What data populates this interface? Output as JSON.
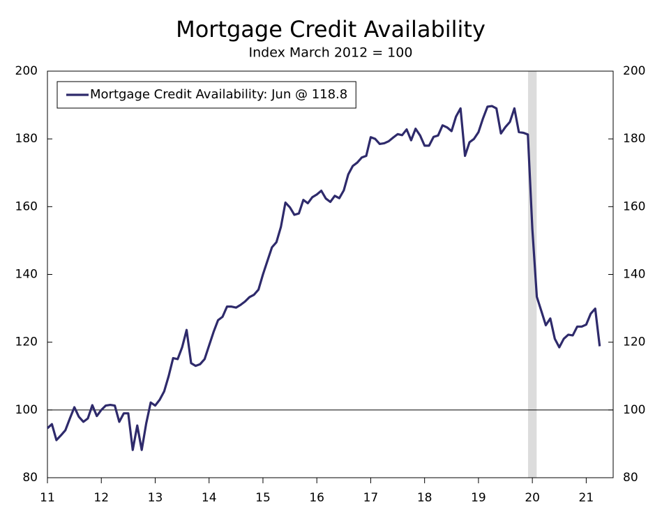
{
  "chart_data": {
    "type": "line",
    "title": "Mortgage Credit Availability",
    "subtitle": "Index March 2012 = 100",
    "x": [
      11.0,
      11.083,
      11.167,
      11.25,
      11.333,
      11.417,
      11.5,
      11.583,
      11.667,
      11.75,
      11.833,
      11.917,
      12.0,
      12.083,
      12.167,
      12.25,
      12.333,
      12.417,
      12.5,
      12.583,
      12.667,
      12.75,
      12.833,
      12.917,
      13.0,
      13.083,
      13.167,
      13.25,
      13.333,
      13.417,
      13.5,
      13.583,
      13.667,
      13.75,
      13.833,
      13.917,
      14.0,
      14.083,
      14.167,
      14.25,
      14.333,
      14.417,
      14.5,
      14.583,
      14.667,
      14.75,
      14.833,
      14.917,
      15.0,
      15.083,
      15.167,
      15.25,
      15.333,
      15.417,
      15.5,
      15.583,
      15.667,
      15.75,
      15.833,
      15.917,
      16.0,
      16.083,
      16.167,
      16.25,
      16.333,
      16.417,
      16.5,
      16.583,
      16.667,
      16.75,
      16.833,
      16.917,
      17.0,
      17.083,
      17.167,
      17.25,
      17.333,
      17.417,
      17.5,
      17.583,
      17.667,
      17.75,
      17.833,
      17.917,
      18.0,
      18.083,
      18.167,
      18.25,
      18.333,
      18.417,
      18.5,
      18.583,
      18.667,
      18.75,
      18.833,
      18.917,
      19.0,
      19.083,
      19.167,
      19.25,
      19.333,
      19.417,
      19.5,
      19.583,
      19.667,
      19.75,
      19.833,
      19.917,
      20.0,
      20.083,
      20.167,
      20.25,
      20.333,
      20.417,
      20.5,
      20.583,
      20.667,
      20.75,
      20.833,
      20.917,
      21.0,
      21.083,
      21.167,
      21.25
    ],
    "series": [
      {
        "name": "Mortgage Credit Availability: Jun @ 118.8",
        "color": "#2e2a6b",
        "values": [
          94.6,
          95.8,
          91.1,
          92.5,
          94,
          97.5,
          100.8,
          98,
          96.5,
          97.5,
          101.4,
          98.2,
          100,
          101.3,
          101.5,
          101.3,
          96.5,
          99,
          99,
          88.2,
          95.4,
          88.2,
          96,
          102.2,
          101.3,
          103,
          105.5,
          110,
          115.3,
          115,
          118.5,
          123.6,
          113.8,
          113,
          113.5,
          115,
          119,
          123,
          126.5,
          127.5,
          130.5,
          130.5,
          130.2,
          131,
          132,
          133.3,
          134,
          135.5,
          140,
          144,
          148,
          149.5,
          154,
          161.2,
          159.8,
          157.6,
          158,
          162,
          161,
          162.8,
          163.6,
          164.7,
          162.4,
          161.4,
          163.2,
          162.5,
          164.8,
          169.5,
          172,
          173,
          174.5,
          175,
          180.5,
          180,
          178.5,
          178.7,
          179.3,
          180.4,
          181.4,
          181.1,
          182.8,
          179.6,
          183,
          181,
          178,
          178,
          180.6,
          181,
          184,
          183.4,
          182.3,
          186.6,
          189,
          175,
          179,
          180,
          182,
          186,
          189.5,
          189.7,
          189,
          181.6,
          183.5,
          185,
          189,
          182,
          181.8,
          181.3,
          153.4,
          133.4,
          129.2,
          125,
          127,
          121,
          118.5,
          121,
          122.2,
          122,
          124.6,
          124.6,
          125.2,
          128.4,
          129.9,
          118.8
        ]
      }
    ],
    "xlim": [
      11,
      21.5
    ],
    "xticks": [
      11,
      12,
      13,
      14,
      15,
      16,
      17,
      18,
      19,
      20,
      21
    ],
    "ylim": [
      80,
      200
    ],
    "yticks": [
      80,
      100,
      120,
      140,
      160,
      180,
      200
    ],
    "reference_line": 100,
    "shaded_ranges": [
      [
        19.92,
        20.08
      ]
    ],
    "shade_color": "#dcdcdc",
    "legend": "top-left"
  }
}
